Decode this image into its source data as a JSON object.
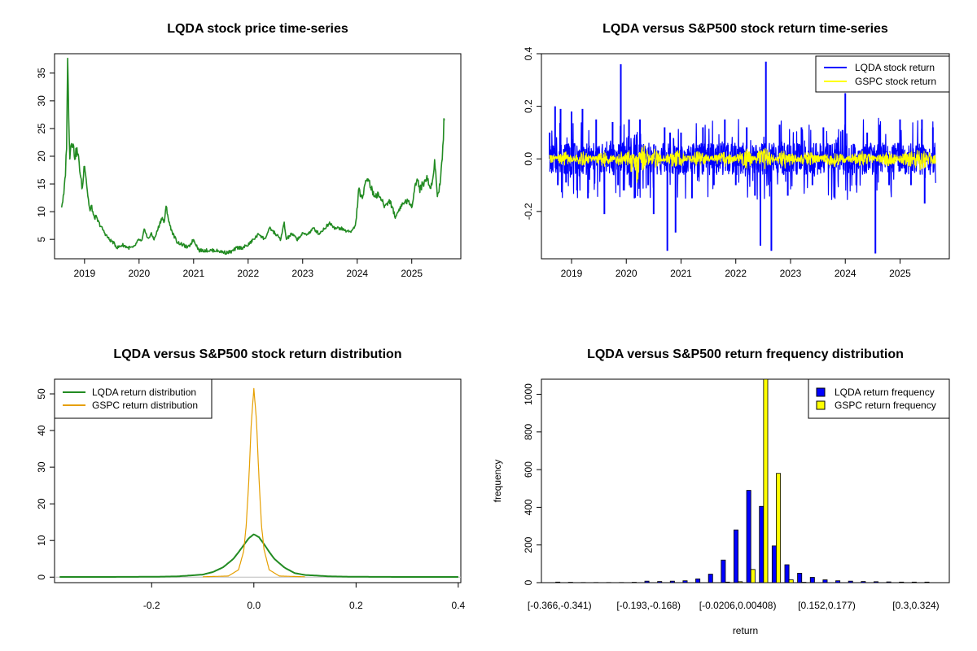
{
  "chart_data": [
    {
      "type": "line",
      "title": "LQDA stock price time-series",
      "xlabel": "",
      "ylabel": "",
      "x_ticks": [
        "2019",
        "2020",
        "2021",
        "2022",
        "2023",
        "2024",
        "2025"
      ],
      "y_ticks": [
        5,
        10,
        15,
        20,
        25,
        30,
        35
      ],
      "xlim": [
        2018.45,
        2025.9
      ],
      "ylim": [
        1.5,
        38.5
      ],
      "series": [
        {
          "color": "#228B22",
          "x": [
            2018.58,
            2018.62,
            2018.65,
            2018.67,
            2018.69,
            2018.71,
            2018.73,
            2018.76,
            2018.79,
            2018.82,
            2018.86,
            2018.9,
            2018.93,
            2018.96,
            2019.0,
            2019.03,
            2019.06,
            2019.1,
            2019.13,
            2019.17,
            2019.21,
            2019.26,
            2019.32,
            2019.38,
            2019.45,
            2019.52,
            2019.6,
            2019.7,
            2019.8,
            2019.9,
            2020.0,
            2020.05,
            2020.1,
            2020.16,
            2020.22,
            2020.28,
            2020.35,
            2020.42,
            2020.46,
            2020.5,
            2020.55,
            2020.62,
            2020.7,
            2020.8,
            2020.9,
            2021.0,
            2021.1,
            2021.2,
            2021.3,
            2021.4,
            2021.5,
            2021.6,
            2021.7,
            2021.8,
            2021.9,
            2022.0,
            2022.1,
            2022.2,
            2022.3,
            2022.4,
            2022.5,
            2022.6,
            2022.66,
            2022.7,
            2022.8,
            2022.9,
            2023.0,
            2023.1,
            2023.2,
            2023.3,
            2023.4,
            2023.5,
            2023.6,
            2023.7,
            2023.8,
            2023.9,
            2023.97,
            2024.03,
            2024.1,
            2024.15,
            2024.2,
            2024.3,
            2024.4,
            2024.5,
            2024.6,
            2024.7,
            2024.8,
            2024.9,
            2025.0,
            2025.05,
            2025.1,
            2025.15,
            2025.2,
            2025.28,
            2025.35,
            2025.42,
            2025.47,
            2025.52,
            2025.56,
            2025.58,
            2025.6
          ],
          "y": [
            11,
            13,
            17,
            22,
            37,
            28,
            20,
            23,
            22,
            20,
            21,
            19,
            16,
            14,
            19,
            16,
            13,
            10,
            11,
            9,
            9,
            8,
            7,
            6,
            5,
            4.5,
            3.5,
            4,
            3.5,
            3.5,
            5,
            4.5,
            7,
            5,
            6,
            5,
            7,
            9,
            8,
            11,
            8,
            6,
            4.5,
            4,
            3.5,
            5,
            3,
            3,
            3,
            3,
            2.8,
            2.6,
            2.8,
            3.5,
            3.5,
            4,
            5,
            6,
            5,
            7,
            6,
            5,
            8,
            5,
            6,
            5,
            6,
            6,
            7,
            6,
            7,
            8,
            7,
            7,
            6.5,
            6.5,
            7.5,
            14,
            12,
            16,
            16,
            13,
            13,
            11,
            12,
            9,
            11,
            12,
            11,
            14,
            16,
            14,
            15,
            16,
            14,
            19,
            13,
            15,
            20,
            24,
            27.5
          ]
        }
      ]
    },
    {
      "type": "line",
      "title": "LQDA versus S&P500 stock return time-series",
      "xlabel": "",
      "ylabel": "",
      "x_ticks": [
        "2019",
        "2020",
        "2021",
        "2022",
        "2023",
        "2024",
        "2025"
      ],
      "y_ticks": [
        "-0.2",
        "0.0",
        "0.2",
        "0.4"
      ],
      "xlim": [
        2018.45,
        2025.9
      ],
      "ylim": [
        -0.38,
        0.4
      ],
      "legend_position": "top-right",
      "series": [
        {
          "name": "LQDA stock return",
          "color": "#0000FF",
          "x": [
            2018.6,
            2018.7,
            2018.75,
            2018.8,
            2018.9,
            2019.0,
            2019.1,
            2019.2,
            2019.3,
            2019.45,
            2019.6,
            2019.75,
            2019.85,
            2019.9,
            2019.95,
            2020.05,
            2020.15,
            2020.25,
            2020.4,
            2020.5,
            2020.7,
            2020.75,
            2020.8,
            2020.9,
            2021.0,
            2021.2,
            2021.4,
            2021.6,
            2021.8,
            2022.0,
            2022.2,
            2022.35,
            2022.45,
            2022.55,
            2022.65,
            2022.8,
            2022.95,
            2023.2,
            2023.4,
            2023.6,
            2023.8,
            2023.95,
            2024.0,
            2024.2,
            2024.4,
            2024.55,
            2024.62,
            2024.8,
            2025.0,
            2025.2,
            2025.4,
            2025.45,
            2025.6
          ],
          "y": [
            0.1,
            0.2,
            -0.1,
            0.19,
            -0.09,
            0.18,
            -0.12,
            0.19,
            -0.15,
            0.15,
            -0.21,
            0.14,
            -0.1,
            0.36,
            -0.12,
            0.15,
            -0.15,
            0.15,
            -0.1,
            -0.21,
            0.12,
            -0.35,
            0.1,
            -0.28,
            0.1,
            -0.15,
            0.12,
            -0.1,
            0.15,
            -0.1,
            0.12,
            -0.14,
            -0.33,
            0.37,
            -0.35,
            0.13,
            -0.14,
            0.12,
            -0.1,
            0.12,
            -0.14,
            0.11,
            0.25,
            -0.1,
            0.1,
            -0.36,
            0.13,
            -0.1,
            0.15,
            -0.1,
            0.15,
            -0.17,
            0.12
          ]
        },
        {
          "name": "GSPC stock return",
          "color": "#FFFF00",
          "x": [
            2018.6,
            2018.9,
            2019.2,
            2019.6,
            2019.9,
            2020.1,
            2020.2,
            2020.3,
            2020.5,
            2020.9,
            2021.3,
            2021.8,
            2022.2,
            2022.5,
            2022.9,
            2023.3,
            2023.8,
            2024.3,
            2024.8,
            2025.2,
            2025.3,
            2025.6
          ],
          "y": [
            0.01,
            -0.02,
            0.02,
            -0.02,
            0.02,
            -0.05,
            0.09,
            -0.06,
            0.03,
            -0.03,
            0.02,
            -0.02,
            0.03,
            -0.04,
            0.03,
            -0.02,
            0.02,
            -0.02,
            0.02,
            -0.03,
            0.04,
            0.01
          ]
        }
      ]
    },
    {
      "type": "line",
      "title": "LQDA versus S&P500 stock return distribution",
      "xlabel": "",
      "ylabel": "",
      "x_ticks": [
        "-0.2",
        "0.0",
        "0.2",
        "0.4"
      ],
      "y_ticks": [
        0,
        10,
        20,
        30,
        40,
        50
      ],
      "xlim": [
        -0.39,
        0.405
      ],
      "ylim": [
        -1.5,
        54
      ],
      "legend_position": "top-left",
      "series": [
        {
          "name": "LQDA return distribution",
          "color": "#228B22",
          "x": [
            -0.38,
            -0.3,
            -0.2,
            -0.15,
            -0.1,
            -0.08,
            -0.06,
            -0.04,
            -0.03,
            -0.02,
            -0.01,
            0.0,
            0.01,
            0.02,
            0.03,
            0.04,
            0.06,
            0.08,
            0.1,
            0.15,
            0.2,
            0.3,
            0.4
          ],
          "y": [
            0.05,
            0.05,
            0.1,
            0.2,
            0.7,
            1.4,
            2.7,
            5.0,
            6.8,
            8.7,
            10.6,
            11.7,
            10.9,
            9.0,
            6.9,
            5.0,
            2.6,
            1.1,
            0.6,
            0.2,
            0.1,
            0.05,
            0.05
          ]
        },
        {
          "name": "GSPC return distribution",
          "color": "#E69F00",
          "x": [
            -0.1,
            -0.05,
            -0.03,
            -0.02,
            -0.015,
            -0.01,
            -0.005,
            0.0,
            0.005,
            0.01,
            0.015,
            0.02,
            0.03,
            0.05,
            0.1
          ],
          "y": [
            0.1,
            0.3,
            2.0,
            7.0,
            14.0,
            26.0,
            42.0,
            51.5,
            43.0,
            27.0,
            14.0,
            7.5,
            2.0,
            0.3,
            0.1
          ]
        }
      ]
    },
    {
      "type": "bar",
      "title": "LQDA versus S&P500 return frequency distribution",
      "xlabel": "return",
      "ylabel": "frequency",
      "tick_labels": [
        "[-0.366,-0.341)",
        "[-0.193,-0.168)",
        "[-0.0206,0.00408)",
        "[0.152,0.177)",
        "[0.3,0.324)"
      ],
      "y_ticks": [
        0,
        200,
        400,
        600,
        800,
        1000
      ],
      "ylim": [
        0,
        1080
      ],
      "legend_position": "top-right",
      "series": [
        {
          "name": "LQDA return frequency",
          "color": "#0000FF",
          "values": [
            3,
            2,
            1,
            1,
            1,
            1,
            2,
            8,
            6,
            8,
            10,
            20,
            45,
            120,
            280,
            490,
            405,
            195,
            95,
            50,
            28,
            15,
            10,
            8,
            6,
            5,
            4,
            3,
            3,
            3
          ]
        },
        {
          "name": "GSPC return frequency",
          "color": "#FFFF00",
          "values": [
            0,
            0,
            0,
            0,
            0,
            0,
            0,
            0,
            0,
            0,
            0,
            0,
            0,
            3,
            5,
            70,
            1080,
            580,
            15,
            2,
            0,
            0,
            0,
            0,
            0,
            0,
            0,
            0,
            0,
            0
          ]
        }
      ]
    }
  ]
}
